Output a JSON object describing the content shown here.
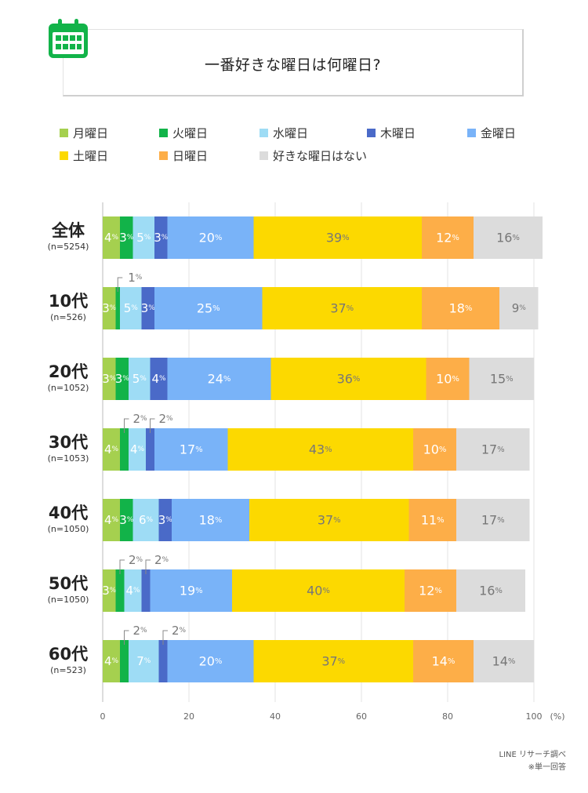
{
  "chart_data": {
    "type": "stacked-bar-horizontal",
    "title": "一番好きな曜日は何曜日?",
    "x_ticks": [
      0,
      20,
      40,
      60,
      80,
      100
    ],
    "x_unit": "(%)",
    "xlim": [
      0,
      100
    ],
    "grid": true,
    "legend_position": "top",
    "series": [
      {
        "name": "月曜日",
        "color": "#a5d04f"
      },
      {
        "name": "火曜日",
        "color": "#12b349"
      },
      {
        "name": "水曜日",
        "color": "#9edcf5"
      },
      {
        "name": "木曜日",
        "color": "#4a6ac8"
      },
      {
        "name": "金曜日",
        "color": "#79b3f8"
      },
      {
        "name": "土曜日",
        "color": "#fcd900"
      },
      {
        "name": "日曜日",
        "color": "#fdae48"
      },
      {
        "name": "好きな曜日はない",
        "color": "#dcdcdc"
      }
    ],
    "rows": [
      {
        "label": "全体",
        "n": "(n=5254)",
        "values": [
          4,
          3,
          5,
          3,
          20,
          39,
          12,
          16
        ]
      },
      {
        "label": "10代",
        "n": "(n=526)",
        "values": [
          3,
          1,
          5,
          3,
          25,
          37,
          18,
          9
        ]
      },
      {
        "label": "20代",
        "n": "(n=1052)",
        "values": [
          3,
          3,
          5,
          4,
          24,
          36,
          10,
          15
        ]
      },
      {
        "label": "30代",
        "n": "(n=1053)",
        "values": [
          4,
          2,
          4,
          2,
          17,
          43,
          10,
          17
        ]
      },
      {
        "label": "40代",
        "n": "(n=1050)",
        "values": [
          4,
          3,
          6,
          3,
          18,
          37,
          11,
          17
        ]
      },
      {
        "label": "50代",
        "n": "(n=1050)",
        "values": [
          3,
          2,
          4,
          2,
          19,
          40,
          12,
          16
        ]
      },
      {
        "label": "60代",
        "n": "(n=523)",
        "values": [
          4,
          2,
          7,
          2,
          20,
          37,
          14,
          14
        ]
      }
    ],
    "label_percent_sign": "%"
  },
  "credits": {
    "source": "LINE リサーチ調べ",
    "note": "※単一回答"
  }
}
